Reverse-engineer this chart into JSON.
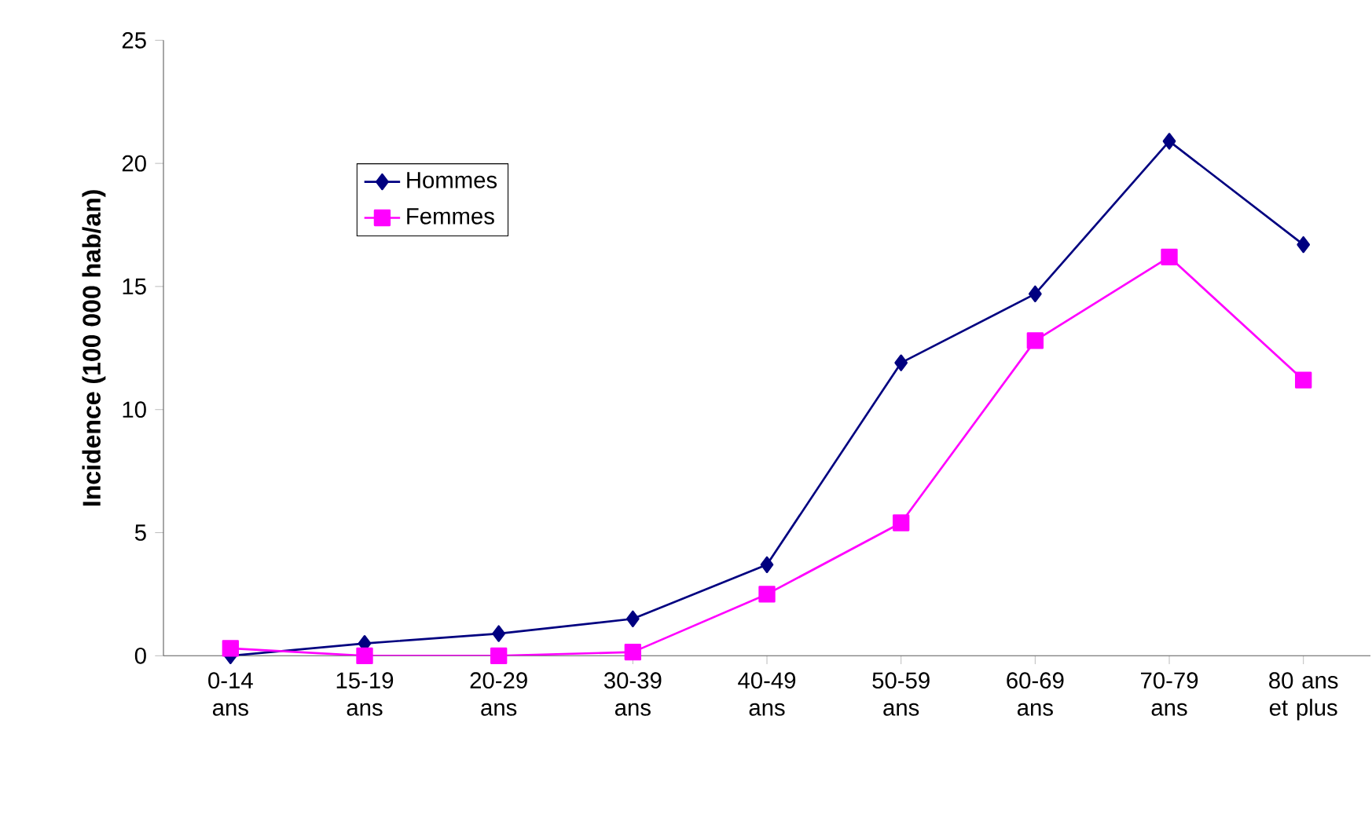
{
  "chart_data": {
    "type": "line",
    "ylabel": "Incidence (100 000 hab/an)",
    "categories": [
      "0-14 ans",
      "15-19 ans",
      "20-29 ans",
      "30-39 ans",
      "40-49 ans",
      "50-59 ans",
      "60-69 ans",
      "70-79 ans",
      "80 ans et plus"
    ],
    "series": [
      {
        "name": "Hommes",
        "color": "#000080",
        "marker": "diamond",
        "values": [
          0.0,
          0.5,
          0.9,
          1.5,
          3.7,
          11.9,
          14.7,
          20.9,
          16.7
        ]
      },
      {
        "name": "Femmes",
        "color": "#ff00ff",
        "marker": "square",
        "values": [
          0.3,
          0.0,
          0.0,
          0.15,
          2.5,
          5.4,
          12.8,
          16.2,
          11.2
        ]
      }
    ],
    "ylim": [
      0,
      25
    ],
    "yticks": [
      0,
      5,
      10,
      15,
      20,
      25
    ],
    "legend": "top left",
    "grid": false
  }
}
